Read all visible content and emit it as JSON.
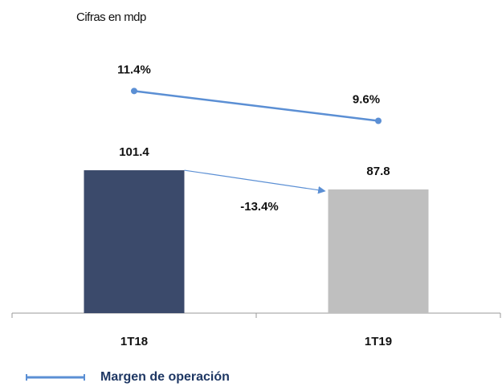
{
  "chart_data": {
    "type": "bar",
    "subtitle": "Cifras en mdp",
    "categories": [
      "1T18",
      "1T19"
    ],
    "ylim": [
      0,
      200
    ],
    "y2lim": [
      -2,
      15
    ],
    "annotation": "-13.4%",
    "legend": "bottom-left",
    "series": [
      {
        "type": "bar",
        "colors": [
          "#3b4a6b",
          "#bfbfbf"
        ],
        "values": [
          101.4,
          87.8
        ]
      },
      {
        "type": "line",
        "name": "Margen de operación",
        "axis": "y2",
        "color": "#5b8fd4",
        "values": [
          11.4,
          9.6
        ],
        "value_labels": [
          "11.4%",
          "9.6%"
        ]
      }
    ]
  }
}
